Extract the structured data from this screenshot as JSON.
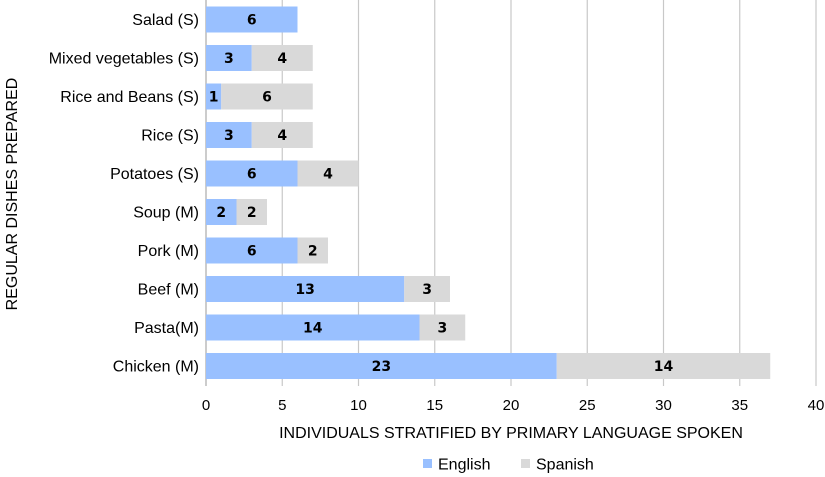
{
  "chart_data": {
    "type": "bar",
    "orientation": "horizontal",
    "stacked": true,
    "categories": [
      "Salad (S)",
      "Mixed vegetables (S)",
      "Rice and Beans (S)",
      "Rice (S)",
      "Potatoes (S)",
      "Soup (M)",
      "Pork (M)",
      "Beef (M)",
      "Pasta(M)",
      "Chicken (M)"
    ],
    "series": [
      {
        "name": "English",
        "color": "#99c0ff",
        "values": [
          6,
          3,
          1,
          3,
          6,
          2,
          6,
          13,
          14,
          23
        ]
      },
      {
        "name": "Spanish",
        "color": "#d9d9d9",
        "values": [
          0,
          4,
          6,
          4,
          4,
          2,
          2,
          3,
          3,
          14
        ]
      }
    ],
    "xlabel": "INDIVIDUALS STRATIFIED BY PRIMARY LANGUAGE SPOKEN",
    "ylabel": "REGULAR DISHES PREPARED",
    "xlim": [
      0,
      40
    ],
    "xticks": [
      0,
      5,
      10,
      15,
      20,
      25,
      30,
      35,
      40
    ],
    "grid": true,
    "legend_position": "bottom"
  }
}
